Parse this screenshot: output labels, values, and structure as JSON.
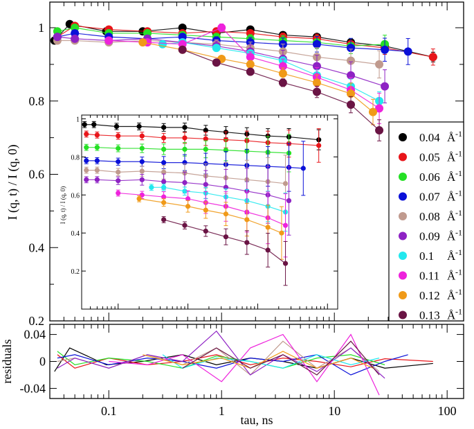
{
  "chart_data": {
    "type": "scatter",
    "x_scale": "log",
    "main": {
      "ylabel": "I (q, t) / I (q, 0)",
      "ylim": [
        0.2,
        1.07
      ],
      "xlim": [
        0.03,
        140
      ],
      "y_ticks": [
        "0.2",
        "0.4",
        "0.6",
        "0.8",
        "1"
      ],
      "y_tick_values": [
        0.2,
        0.4,
        0.6,
        0.8,
        1.0
      ],
      "x_ticks": [
        "0.1",
        "1",
        "10",
        "100"
      ],
      "x_tick_values": [
        0.1,
        1,
        10,
        100
      ]
    },
    "residuals": {
      "ylabel": "residuals",
      "xlabel": "tau, ns",
      "ylim": [
        -0.055,
        0.055
      ],
      "y_ticks": [
        "0.04",
        "0",
        "-0.04"
      ],
      "y_tick_values": [
        0.04,
        0,
        -0.04
      ]
    },
    "inset": {
      "ylabel": "I (q, t) / I (q, 0)",
      "ylim": [
        0.0,
        1.02
      ],
      "xlim": [
        0.03,
        140
      ],
      "y_ticks": [
        "1",
        "0.8",
        "0.6",
        "0.4",
        "0.2"
      ],
      "y_tick_values": [
        1.0,
        0.8,
        0.6,
        0.4,
        0.2
      ]
    },
    "legend": {
      "placement": "right",
      "entries": [
        {
          "q": "0.04",
          "unit": "Å",
          "exp": "-1",
          "color": "#000000"
        },
        {
          "q": "0.05",
          "unit": "Å",
          "exp": "-1",
          "color": "#e8151a"
        },
        {
          "q": "0.06",
          "unit": "Å",
          "exp": "-1",
          "color": "#25e025"
        },
        {
          "q": "0.07",
          "unit": "Å",
          "exp": "-1",
          "color": "#0a10d8"
        },
        {
          "q": "0.08",
          "unit": "Å",
          "exp": "-1",
          "color": "#c09a8e"
        },
        {
          "q": "0.09",
          "unit": "Å",
          "exp": "-1",
          "color": "#8e22c4"
        },
        {
          "q": "0.1",
          "unit": "Å",
          "exp": "-1",
          "color": "#22e8ee"
        },
        {
          "q": "0.11",
          "unit": "Å",
          "exp": "-1",
          "color": "#ee22dc"
        },
        {
          "q": "0.12",
          "unit": "Å",
          "exp": "-1",
          "color": "#f09a18"
        },
        {
          "q": "0.13",
          "unit": "Å",
          "exp": "-1",
          "color": "#6a1444"
        }
      ]
    },
    "series": [
      {
        "name": "0.04 Å-1",
        "color": "#000000",
        "tau": [
          0.033,
          0.045,
          0.095,
          0.2,
          0.45,
          0.9,
          1.8,
          3.5,
          7,
          14,
          28,
          75
        ],
        "y": [
          0.965,
          1.01,
          0.99,
          0.99,
          1.0,
          0.985,
          0.995,
          0.98,
          0.975,
          0.96,
          0.95,
          0.92
        ],
        "inset_y": [
          0.97,
          0.97,
          0.96,
          0.96,
          0.955,
          0.955,
          0.94,
          0.93,
          0.92,
          0.91,
          0.905,
          0.89
        ],
        "residuals": [
          -0.015,
          0.02,
          -0.005,
          0.0,
          0.01,
          -0.005,
          0.005,
          0.0,
          -0.01,
          0.005,
          -0.01,
          -0.003
        ]
      },
      {
        "name": "0.05 Å-1",
        "color": "#e8151a",
        "tau": [
          0.035,
          0.05,
          0.1,
          0.22,
          0.45,
          0.9,
          1.8,
          3.5,
          7,
          14,
          28,
          75
        ],
        "y": [
          0.975,
          1.005,
          0.995,
          0.99,
          0.985,
          0.99,
          0.985,
          0.975,
          0.97,
          0.955,
          0.945,
          0.92
        ],
        "inset_y": [
          0.92,
          0.915,
          0.91,
          0.91,
          0.9,
          0.9,
          0.895,
          0.89,
          0.885,
          0.875,
          0.87,
          0.86
        ],
        "residuals": [
          0.01,
          -0.01,
          0.005,
          -0.005,
          0.0,
          0.01,
          -0.005,
          0.005,
          0.0,
          -0.008,
          0.004,
          0.0
        ]
      },
      {
        "name": "0.06 Å-1",
        "color": "#25e025",
        "tau": [
          0.035,
          0.05,
          0.1,
          0.22,
          0.45,
          0.9,
          1.8,
          3.5,
          7,
          14,
          28
        ],
        "y": [
          0.99,
          1.0,
          0.985,
          0.985,
          0.98,
          0.975,
          0.97,
          0.965,
          0.96,
          0.95,
          0.955
        ],
        "inset_y": [
          0.85,
          0.85,
          0.845,
          0.845,
          0.84,
          0.84,
          0.84,
          0.835,
          0.83,
          0.825,
          0.82
        ],
        "residuals": [
          0.015,
          -0.005,
          0.005,
          0.0,
          -0.01,
          0.008,
          0.0,
          -0.01,
          0.005,
          0.01,
          -0.005
        ]
      },
      {
        "name": "0.07 Å-1",
        "color": "#0a10d8",
        "tau": [
          0.035,
          0.05,
          0.1,
          0.22,
          0.45,
          0.9,
          1.8,
          3.5,
          7,
          14,
          28,
          45
        ],
        "y": [
          0.975,
          0.985,
          0.975,
          0.97,
          0.975,
          0.965,
          0.96,
          0.955,
          0.955,
          0.945,
          0.94,
          0.935
        ],
        "inset_y": [
          0.78,
          0.78,
          0.775,
          0.775,
          0.77,
          0.77,
          0.765,
          0.76,
          0.755,
          0.75,
          0.745,
          0.74
        ],
        "residuals": [
          0.005,
          0.01,
          -0.005,
          0.005,
          0.0,
          -0.01,
          0.005,
          0.0,
          0.01,
          -0.02,
          0.0,
          0.01
        ]
      },
      {
        "name": "0.08 Å-1",
        "color": "#c09a8e",
        "tau": [
          0.035,
          0.05,
          0.1,
          0.22,
          0.45,
          0.9,
          1.8,
          3.5,
          7,
          14,
          25
        ],
        "y": [
          0.965,
          0.965,
          0.96,
          0.965,
          0.96,
          0.955,
          0.945,
          0.935,
          0.92,
          0.91,
          0.9
        ],
        "inset_y": [
          0.73,
          0.73,
          0.72,
          0.725,
          0.72,
          0.715,
          0.7,
          0.69,
          0.68,
          0.67,
          0.66
        ],
        "residuals": [
          0.0,
          0.005,
          -0.01,
          0.01,
          -0.005,
          0.02,
          -0.02,
          0.03,
          -0.01,
          0.02,
          -0.015
        ]
      },
      {
        "name": "0.09 Å-1",
        "color": "#8e22c4",
        "tau": [
          0.035,
          0.05,
          0.1,
          0.22,
          0.45,
          0.9,
          1.8,
          3.5,
          7,
          14,
          28
        ],
        "y": [
          0.975,
          0.97,
          0.965,
          0.97,
          0.96,
          0.95,
          0.935,
          0.915,
          0.895,
          0.87,
          0.84
        ],
        "inset_y": [
          0.68,
          0.68,
          0.675,
          0.68,
          0.67,
          0.665,
          0.655,
          0.64,
          0.62,
          0.6,
          0.57
        ],
        "residuals": [
          -0.01,
          0.005,
          -0.01,
          0.01,
          0.0,
          0.045,
          -0.02,
          0.01,
          -0.015,
          0.02,
          -0.025
        ]
      },
      {
        "name": "0.1 Å-1",
        "color": "#22e8ee",
        "tau": [
          0.3,
          0.45,
          0.9,
          1.8,
          3.5,
          7,
          14,
          25
        ],
        "y": [
          0.955,
          0.96,
          0.945,
          0.93,
          0.91,
          0.87,
          0.84,
          0.8
        ],
        "inset_y": [
          0.64,
          0.64,
          0.62,
          0.61,
          0.59,
          0.57,
          0.54,
          0.51
        ],
        "residuals": [
          0.01,
          -0.01,
          0.005,
          0.0,
          -0.01,
          0.01,
          -0.005,
          0.005
        ]
      },
      {
        "name": "0.11 Å-1",
        "color": "#ee22dc",
        "tau": [
          0.1,
          0.22,
          0.45,
          1.0,
          1.8,
          3.5,
          7,
          14,
          25
        ],
        "y": [
          0.965,
          0.96,
          0.955,
          1.0,
          0.92,
          0.895,
          0.865,
          0.83,
          0.78
        ],
        "inset_y": [
          0.61,
          0.6,
          0.59,
          0.58,
          0.56,
          0.54,
          0.51,
          0.48,
          0.44
        ],
        "residuals": [
          0.0,
          -0.005,
          0.01,
          -0.03,
          0.02,
          0.04,
          -0.03,
          0.04,
          -0.05
        ]
      },
      {
        "name": "0.12 Å-1",
        "color": "#f09a18",
        "tau": [
          0.2,
          0.45,
          1.0,
          1.8,
          3.5,
          7,
          14,
          22
        ],
        "y": [
          0.96,
          0.94,
          0.915,
          0.9,
          0.875,
          0.85,
          0.82,
          0.77
        ],
        "inset_y": [
          0.58,
          0.56,
          0.54,
          0.52,
          0.5,
          0.47,
          0.43,
          0.4
        ],
        "residuals": [
          0.01,
          -0.005,
          0.005,
          -0.01,
          0.015,
          -0.01,
          0.005,
          -0.01
        ]
      },
      {
        "name": "0.13 Å-1",
        "color": "#6a1444",
        "tau": [
          0.45,
          0.9,
          1.8,
          3.5,
          7,
          14,
          25
        ],
        "y": [
          0.94,
          0.905,
          0.88,
          0.85,
          0.825,
          0.79,
          0.72
        ],
        "inset_y": [
          0.47,
          0.44,
          0.41,
          0.38,
          0.35,
          0.31,
          0.24
        ],
        "residuals": [
          -0.01,
          0.02,
          -0.01,
          0.01,
          -0.02,
          0.03,
          -0.02
        ]
      }
    ]
  }
}
